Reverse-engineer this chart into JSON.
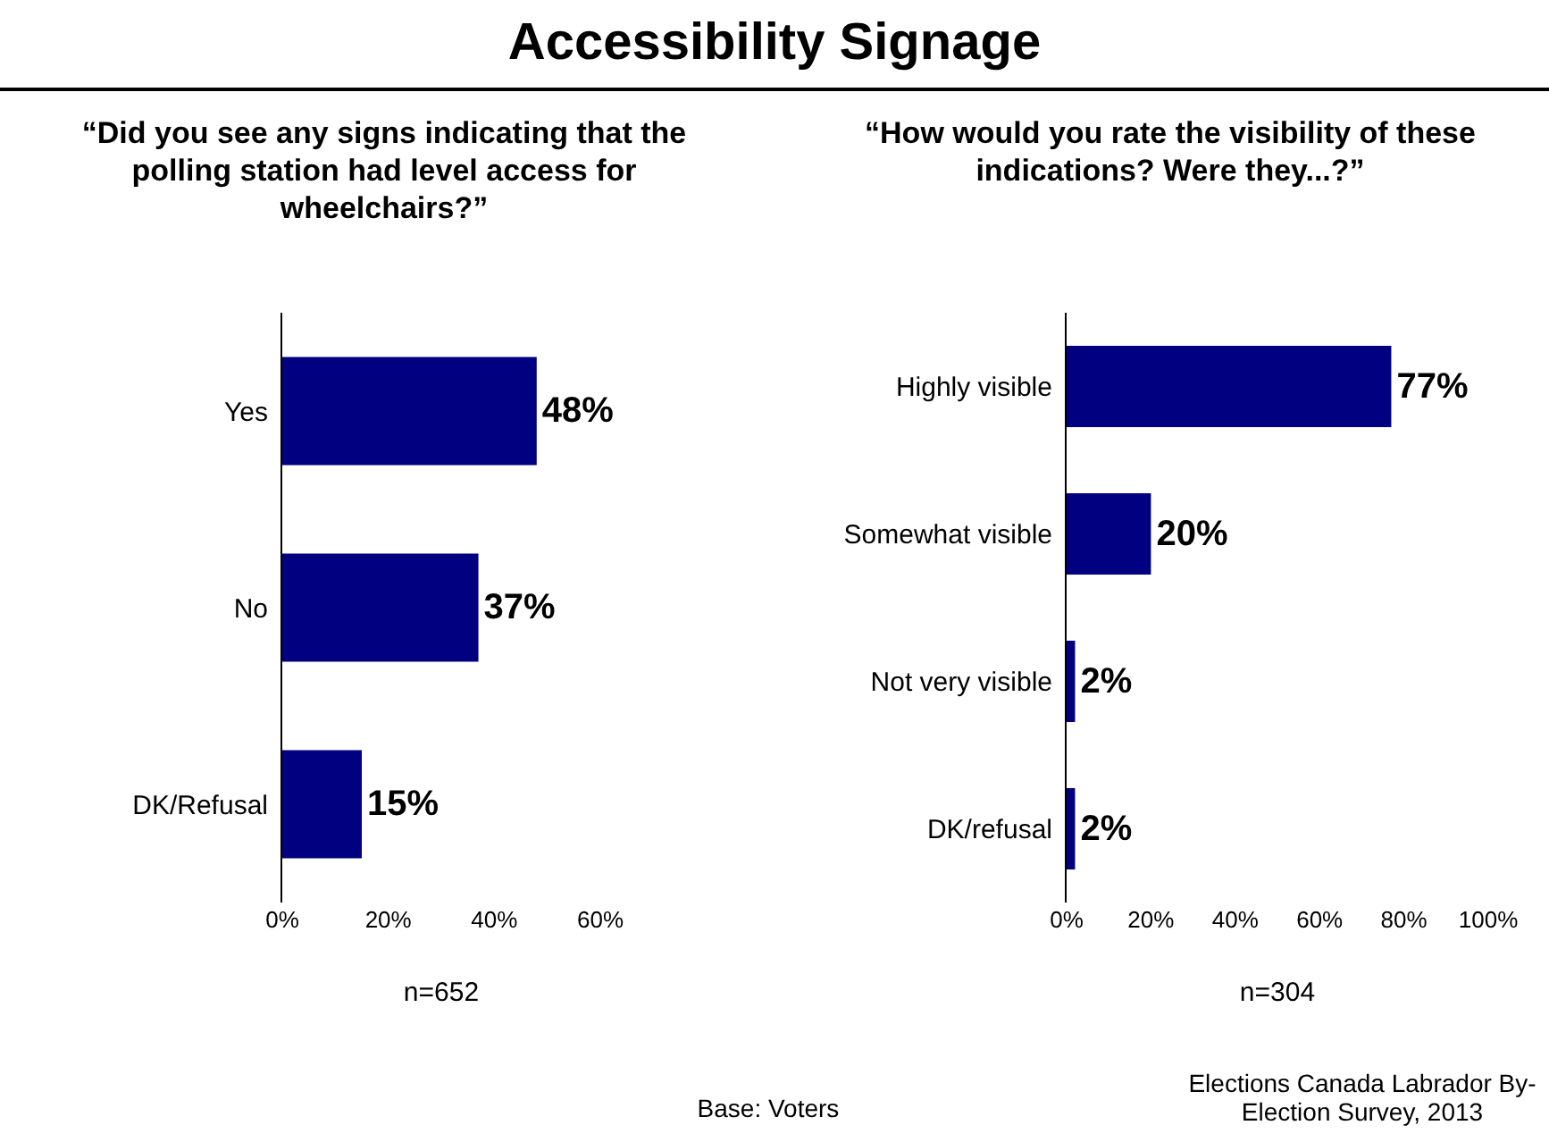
{
  "chart_data": [
    {
      "type": "bar",
      "orientation": "horizontal",
      "title": "Accessibility Signage",
      "subtitle": "“Did you see any signs indicating that the polling station had level access for wheelchairs?”",
      "categories": [
        "Yes",
        "No",
        "DK/Refusal"
      ],
      "values": [
        48,
        37,
        15
      ],
      "value_labels": [
        "48%",
        "37%",
        "15%"
      ],
      "color": "#000080",
      "xlim": [
        0,
        60
      ],
      "xticks": [
        {
          "value": 0,
          "label": "0%"
        },
        {
          "value": 20,
          "label": "20%"
        },
        {
          "value": 40,
          "label": "40%"
        },
        {
          "value": 60,
          "label": "60%"
        }
      ],
      "xlabel": "n=652",
      "annotations": [
        "Base: Voters"
      ]
    },
    {
      "type": "bar",
      "orientation": "horizontal",
      "title": "“How would you rate the visibility of these indications? Were they...?”",
      "categories": [
        "Highly visible",
        "Somewhat visible",
        "Not very visible",
        "DK/refusal"
      ],
      "values": [
        77,
        20,
        2,
        2
      ],
      "value_labels": [
        "77%",
        "20%",
        "2%",
        "2%"
      ],
      "color": "#000080",
      "xlim": [
        0,
        100
      ],
      "xticks": [
        {
          "value": 0,
          "label": "0%"
        },
        {
          "value": 20,
          "label": "20%"
        },
        {
          "value": 40,
          "label": "40%"
        },
        {
          "value": 60,
          "label": "60%"
        },
        {
          "value": 80,
          "label": "80%"
        },
        {
          "value": 100,
          "label": "100%"
        }
      ],
      "xlabel": "n=304",
      "annotations": [
        "Elections Canada Labrador By-Election Survey, 2013"
      ]
    }
  ]
}
